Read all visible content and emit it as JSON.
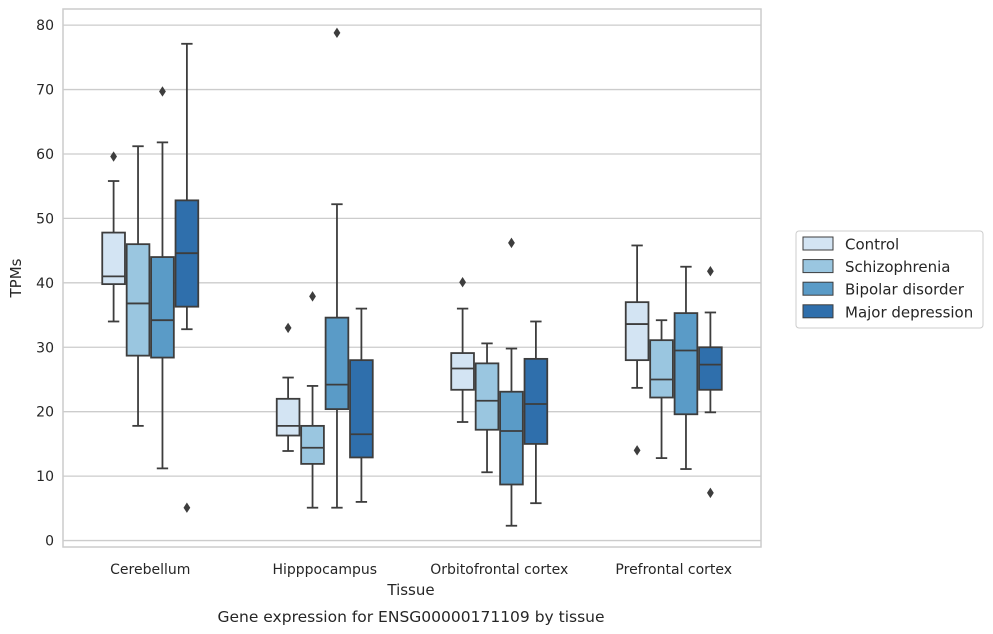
{
  "chart_data": {
    "type": "box",
    "caption": "Gene expression for ENSG00000171109 by tissue",
    "xlabel": "Tissue",
    "ylabel": "TPMs",
    "ylim": [
      -1,
      82.5
    ],
    "yticks": [
      0,
      10,
      20,
      30,
      40,
      50,
      60,
      70,
      80
    ],
    "grid": true,
    "legend_position": "right",
    "categories": [
      "Cerebellum",
      "Hipppocampus",
      "Orbitofrontal cortex",
      "Prefrontal cortex"
    ],
    "series": [
      {
        "name": "Control",
        "color": "#d3e4f3",
        "boxes": [
          {
            "whislo": 34.0,
            "q1": 39.8,
            "med": 41.0,
            "q3": 47.8,
            "whishi": 55.8,
            "fliers": [
              59.6
            ]
          },
          {
            "whislo": 13.9,
            "q1": 16.3,
            "med": 17.8,
            "q3": 22.0,
            "whishi": 25.3,
            "fliers": [
              33.0
            ]
          },
          {
            "whislo": 18.4,
            "q1": 23.4,
            "med": 26.7,
            "q3": 29.1,
            "whishi": 36.0,
            "fliers": [
              40.1
            ]
          },
          {
            "whislo": 23.7,
            "q1": 28.0,
            "med": 33.6,
            "q3": 37.0,
            "whishi": 45.8,
            "fliers": [
              14.0
            ]
          }
        ]
      },
      {
        "name": "Schizophrenia",
        "color": "#9ac6e0",
        "boxes": [
          {
            "whislo": 17.8,
            "q1": 28.7,
            "med": 36.8,
            "q3": 46.0,
            "whishi": 61.2,
            "fliers": []
          },
          {
            "whislo": 5.1,
            "q1": 11.9,
            "med": 14.4,
            "q3": 17.8,
            "whishi": 24.0,
            "fliers": [
              37.9
            ]
          },
          {
            "whislo": 10.6,
            "q1": 17.2,
            "med": 21.7,
            "q3": 27.5,
            "whishi": 30.6,
            "fliers": []
          },
          {
            "whislo": 12.8,
            "q1": 22.2,
            "med": 25.0,
            "q3": 31.1,
            "whishi": 34.2,
            "fliers": []
          }
        ]
      },
      {
        "name": "Bipolar disorder",
        "color": "#5a9bc7",
        "boxes": [
          {
            "whislo": 11.2,
            "q1": 28.4,
            "med": 34.2,
            "q3": 44.0,
            "whishi": 61.8,
            "fliers": [
              69.7
            ]
          },
          {
            "whislo": 5.1,
            "q1": 20.4,
            "med": 24.2,
            "q3": 34.6,
            "whishi": 52.2,
            "fliers": [
              78.8
            ]
          },
          {
            "whislo": 2.3,
            "q1": 8.7,
            "med": 17.0,
            "q3": 23.1,
            "whishi": 29.8,
            "fliers": [
              46.2
            ]
          },
          {
            "whislo": 11.1,
            "q1": 19.6,
            "med": 29.5,
            "q3": 35.3,
            "whishi": 42.5,
            "fliers": []
          }
        ]
      },
      {
        "name": "Major depression",
        "color": "#2f6fac",
        "boxes": [
          {
            "whislo": 32.8,
            "q1": 36.3,
            "med": 44.6,
            "q3": 52.8,
            "whishi": 77.1,
            "fliers": [
              5.1
            ]
          },
          {
            "whislo": 6.0,
            "q1": 12.9,
            "med": 16.5,
            "q3": 28.0,
            "whishi": 36.0,
            "fliers": []
          },
          {
            "whislo": 5.8,
            "q1": 15.0,
            "med": 21.2,
            "q3": 28.2,
            "whishi": 34.0,
            "fliers": []
          },
          {
            "whislo": 19.9,
            "q1": 23.4,
            "med": 27.3,
            "q3": 30.0,
            "whishi": 35.4,
            "fliers": [
              41.8,
              7.4
            ]
          }
        ]
      }
    ]
  }
}
